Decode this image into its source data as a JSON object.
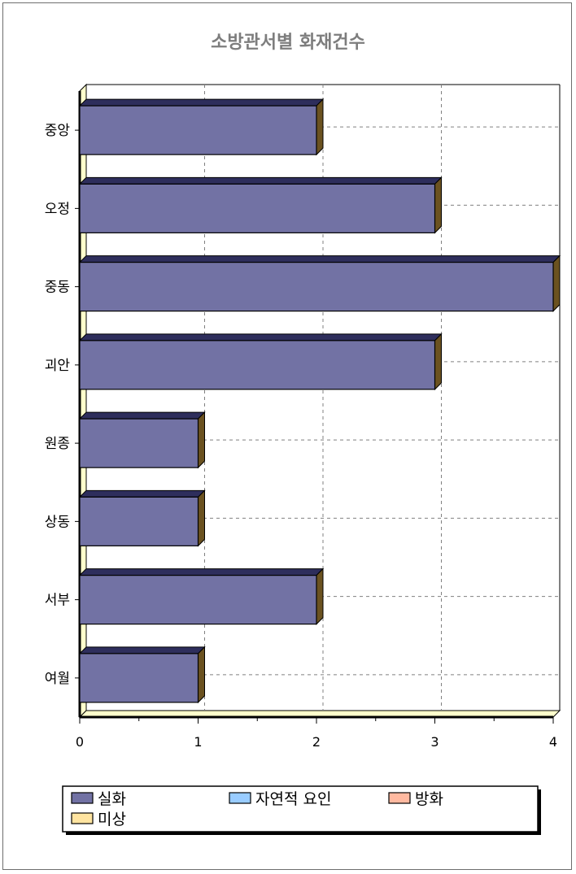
{
  "chart_data": {
    "type": "bar",
    "orientation": "horizontal",
    "title": "소방관서별  화재건수",
    "categories": [
      "중앙",
      "오정",
      "중동",
      "괴안",
      "원종",
      "상동",
      "서부",
      "여월"
    ],
    "series": [
      {
        "name": "실화",
        "values": [
          2,
          3,
          4,
          3,
          1,
          1,
          2,
          1
        ],
        "color": "#7272a4"
      },
      {
        "name": "자연적 요인",
        "values": [
          0,
          0,
          0,
          0,
          0,
          0,
          0,
          0
        ],
        "color": "#99ccff"
      },
      {
        "name": "방화",
        "values": [
          0,
          0,
          0,
          0,
          0,
          0,
          0,
          0
        ],
        "color": "#ffb9a0"
      },
      {
        "name": "미상",
        "values": [
          0,
          0,
          0,
          0,
          0,
          0,
          0,
          0
        ],
        "color": "#ffe4a0"
      }
    ],
    "x_ticks": [
      "0",
      "1",
      "2",
      "3",
      "4"
    ],
    "xlim": [
      0,
      4
    ],
    "xlabel": "",
    "ylabel": "",
    "grid": true,
    "legend_position": "bottom"
  }
}
